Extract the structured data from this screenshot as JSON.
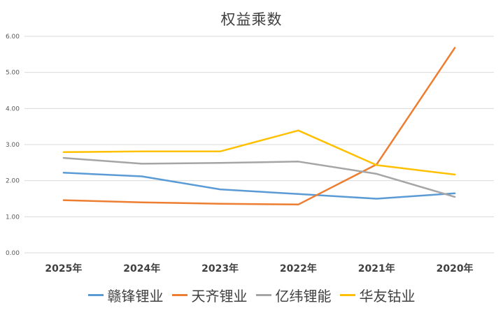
{
  "chart_data": {
    "type": "line",
    "title": "权益乘数",
    "categories": [
      "2025年",
      "2024年",
      "2023年",
      "2022年",
      "2021年",
      "2020年"
    ],
    "ylim": [
      0,
      6
    ],
    "yticks": [
      "0.00",
      "1.00",
      "2.00",
      "3.00",
      "4.00",
      "5.00",
      "6.00"
    ],
    "grid": true,
    "legend_position": "bottom",
    "series": [
      {
        "name": "赣锋锂业",
        "color": "#5B9BD5",
        "values": [
          2.22,
          2.12,
          1.76,
          1.63,
          1.5,
          1.65
        ]
      },
      {
        "name": "天齐锂业",
        "color": "#ED7D31",
        "values": [
          1.46,
          1.4,
          1.36,
          1.34,
          2.45,
          5.68
        ]
      },
      {
        "name": "亿纬锂能",
        "color": "#A5A5A5",
        "values": [
          2.63,
          2.47,
          2.49,
          2.53,
          2.19,
          1.55
        ]
      },
      {
        "name": "华友钴业",
        "color": "#FFC000",
        "values": [
          2.79,
          2.81,
          2.81,
          3.39,
          2.43,
          2.17
        ]
      }
    ]
  }
}
